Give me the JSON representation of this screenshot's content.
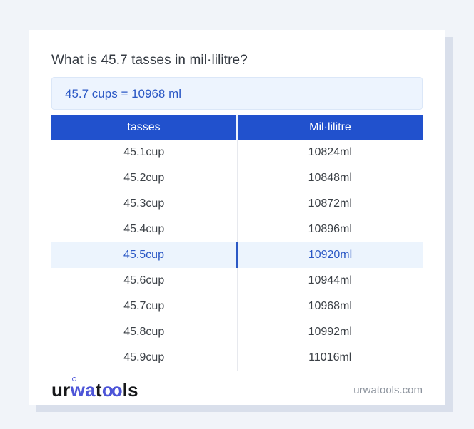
{
  "colors": {
    "page_background": "#f1f4f9",
    "card_background": "#ffffff",
    "card_shadow": "#d9dfeb",
    "header_blue": "#2151cd",
    "accent_blue": "#2b58c5",
    "result_background": "#edf4fe",
    "active_row_background": "#ecf4fd",
    "body_text": "#3b4046",
    "muted_text": "#8b929c",
    "logo_blue": "#4d55d8"
  },
  "header": {
    "title": "What is 45.7 tasses in mil·lilitre?"
  },
  "result": {
    "text": "45.7 cups = 10968 ml"
  },
  "table": {
    "columns": [
      "tasses",
      "Mil·lilitre"
    ],
    "active_row_index": 4,
    "rows": [
      {
        "cups": "45.1cup",
        "ml": "10824ml"
      },
      {
        "cups": "45.2cup",
        "ml": "10848ml"
      },
      {
        "cups": "45.3cup",
        "ml": "10872ml"
      },
      {
        "cups": "45.4cup",
        "ml": "10896ml"
      },
      {
        "cups": "45.5cup",
        "ml": "10920ml"
      },
      {
        "cups": "45.6cup",
        "ml": "10944ml"
      },
      {
        "cups": "45.7cup",
        "ml": "10968ml"
      },
      {
        "cups": "45.8cup",
        "ml": "10992ml"
      },
      {
        "cups": "45.9cup",
        "ml": "11016ml"
      }
    ]
  },
  "footer": {
    "logo": {
      "p1": "ur",
      "p2": "wa",
      "p3": "t",
      "p4": "oo",
      "p5": "ls"
    },
    "site": "urwatools.com"
  }
}
